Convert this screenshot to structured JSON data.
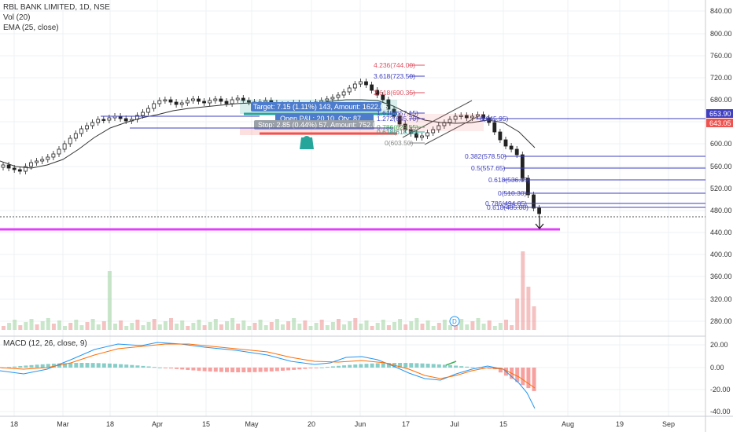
{
  "legend": {
    "title": "RBL BANK LIMITED, 1D, NSE",
    "vol": "Vol (20)",
    "ema": "EMA (25, close)",
    "macd": "MACD (12, 26, close, 9)"
  },
  "price_axis": [
    "840.00",
    "800.00",
    "760.00",
    "720.00",
    "680.00",
    "640.00",
    "600.00",
    "560.00",
    "520.00",
    "480.00",
    "440.00",
    "400.00",
    "360.00",
    "320.00",
    "280.00"
  ],
  "macd_axis": [
    "20.00",
    "0.00",
    "-20.00",
    "-40.00"
  ],
  "price_tags": {
    "current": "653.90",
    "second": "643.05"
  },
  "time_axis": [
    "18",
    "Mar",
    "18",
    "Apr",
    "15",
    "May",
    "20",
    "Jun",
    "17",
    "Jul",
    "15",
    "Aug",
    "19",
    "Sep"
  ],
  "fib_right": [
    "0.382(578.50)",
    "0.5(557.65)",
    "0.618(536.85)",
    "0(510.30)",
    "0.786(494.85)",
    "0.618(485.00)"
  ],
  "fib_left": [
    "4.236(744.00)",
    "3.618(723.50)",
    "2.618(690.35)",
    "1.618(657.15)",
    "1.272(645.70)",
    "0.786(629.55)",
    "0.618(618.60)",
    "0(603.50)"
  ],
  "fib_right_top": "0(645.95)",
  "trade": {
    "target": "Target: 7.15 (1.11%) 143, Amount: 1622.05",
    "open": "Open P&L: 20.10, Qty: 87",
    "stop": "Stop: 2.85 (0.44%) 57, Amount: 752.05"
  },
  "dividend_marker": "D",
  "colors": {
    "up": "#26a69a",
    "down": "#ef5350",
    "macd": "#2196f3",
    "signal": "#ff6d00",
    "fib": "#3f3fbf",
    "magenta": "#e040fb",
    "ema": "#333333"
  }
}
